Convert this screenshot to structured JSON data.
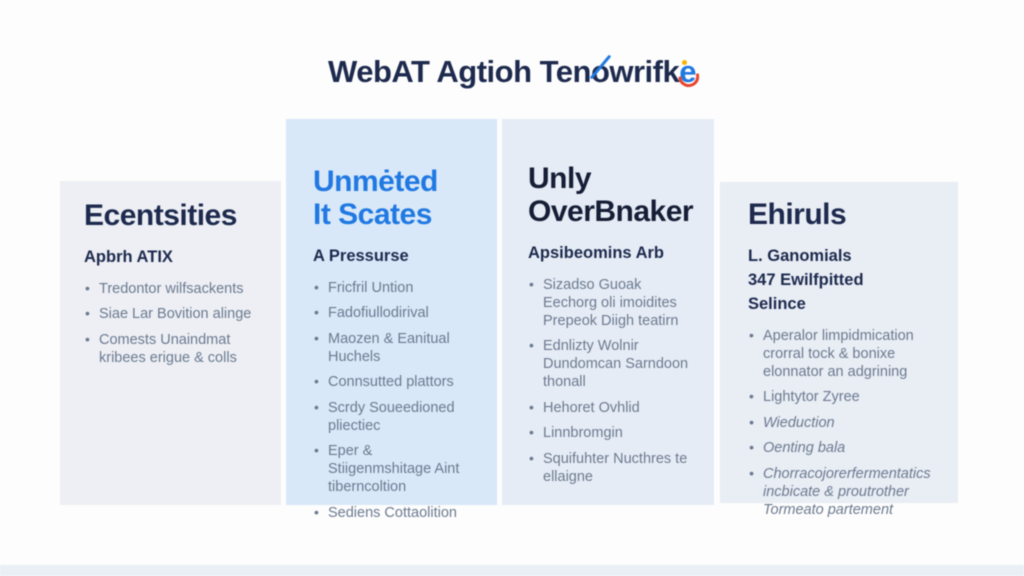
{
  "colors": {
    "page_bg": "#fdfdfd",
    "navy": "#1d2a4e",
    "navy_dark": "#151e36",
    "accent_blue": "#2079e2",
    "bullet_gray": "#6b7a90",
    "panel_col1": "#edeff4",
    "panel_col2": "#d8e8f8",
    "panel_col3": "#e6ecf5",
    "panel_col4": "#e9edf4",
    "footer_band": "#e9eff4",
    "logo_e_blue": "#2079e2",
    "logo_arc_red": "#e8442c",
    "logo_dot_yellow": "#f5b400"
  },
  "title": {
    "part1": "WebAT Agtioh Ten",
    "o": "o",
    "part2": "wrifk",
    "logo_e": "e"
  },
  "columns": [
    {
      "heading_lines": [
        "Ecentsities"
      ],
      "subhead_lines": [
        "Apbrh ATIX"
      ],
      "bullets": [
        "Tredontor wilfsackents",
        "Siae Lar Bovition alinge",
        "Comests Unaindmat kribees erigue & colls"
      ]
    },
    {
      "heading_lines": [
        "Unmėted",
        "It Scates"
      ],
      "subhead_lines": [
        "A Pressurse"
      ],
      "bullets": [
        "Fricfril Untion",
        "Fadofiullodirival",
        "Maozen & Eanitual Huchels",
        "Connsutted plattors",
        "Scrdy Soueedioned pliectiec",
        "Eper & Stiigenmshitage Aint tiberncoltion",
        "Sediens Cottaolition"
      ]
    },
    {
      "heading_lines": [
        "Unly",
        "OverBnaker"
      ],
      "subhead_lines": [
        "Apsibeomins Arb"
      ],
      "bullets": [
        "Sizadso Guoak Eechorg oli imoidites Prepeok Diigh teatirn",
        "Ednlizty Wolnir Dundomcan Sarndoon thonall",
        "Hehoret Ovhlid",
        "Linnbromgin",
        "Squifuhter Nucthres te ellaigne"
      ]
    },
    {
      "heading_lines": [
        "Ehiruls"
      ],
      "subhead_lines": [
        "L. Ganomials",
        "347 Ewilfpitted",
        "Selince"
      ],
      "bullets": [
        "Aperalor limpidmication crorral tock & bonixe elonnator an adgrining",
        "Lightytor Zyree",
        "Wieduction",
        "Oenting bala",
        "Chorracojorerfermentatics incbicate & proutrother Tormeato partement"
      ]
    }
  ]
}
